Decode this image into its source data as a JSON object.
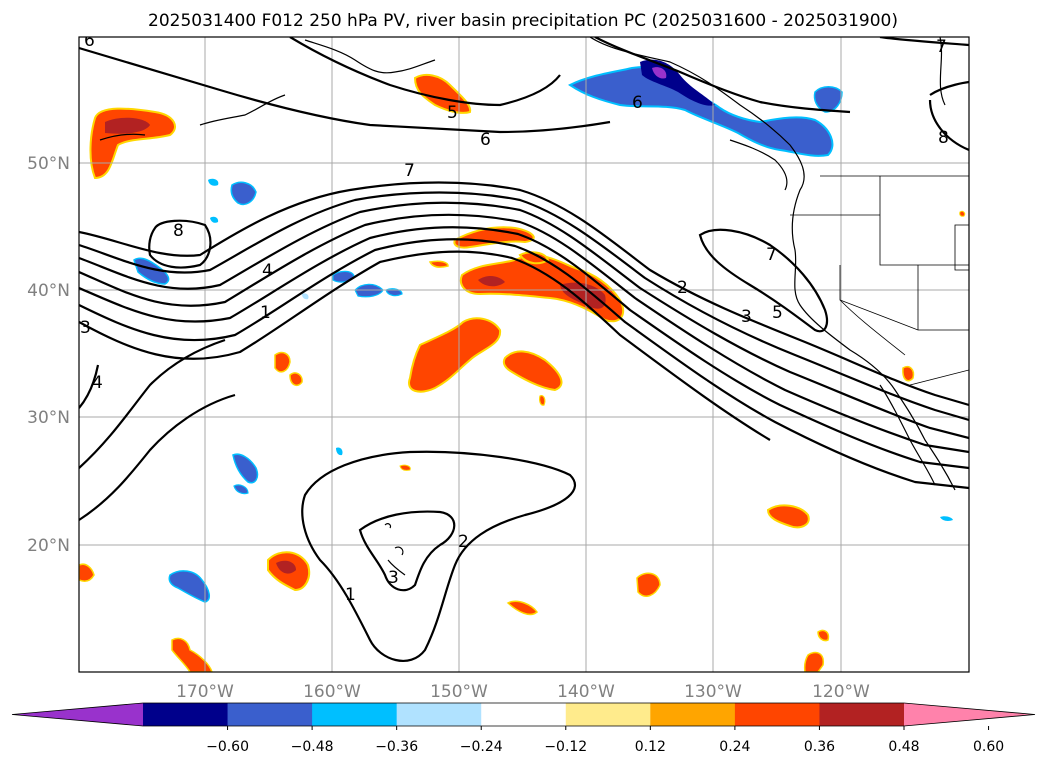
{
  "title": "2025031400 F012 250 hPa PV, river basin precipitation PC (2025031600 - 2025031900)",
  "lat_labels": [
    "50°N",
    "40°N",
    "30°N",
    "20°N"
  ],
  "lon_labels": [
    "170°W",
    "160°W",
    "150°W",
    "140°W",
    "130°W",
    "120°W"
  ],
  "colorbar": {
    "ticks": [
      "−0.60",
      "−0.48",
      "−0.36",
      "−0.24",
      "−0.12",
      "0.12",
      "0.24",
      "0.36",
      "0.48",
      "0.60"
    ],
    "colors": [
      "#9932cc",
      "#00008b",
      "#3a5fcd",
      "#00bfff",
      "#b0e2ff",
      "#ffffff",
      "#ffeb8c",
      "#ffa500",
      "#ff4500",
      "#b22222",
      "#ff82ab"
    ]
  },
  "contour_labels": [
    "6",
    "5",
    "6",
    "7",
    "8",
    "4",
    "1",
    "3",
    "4",
    "2",
    "3",
    "5",
    "7",
    "7",
    "6",
    "8",
    "2",
    "3",
    "1"
  ],
  "colors": {
    "red_orange": "#ff4500",
    "dark_red": "#b22222",
    "yellow_edge": "#ffd700",
    "blue": "#3a5fcd",
    "light_blue": "#00bfff",
    "navy": "#00008b",
    "purple": "#9932cc"
  }
}
